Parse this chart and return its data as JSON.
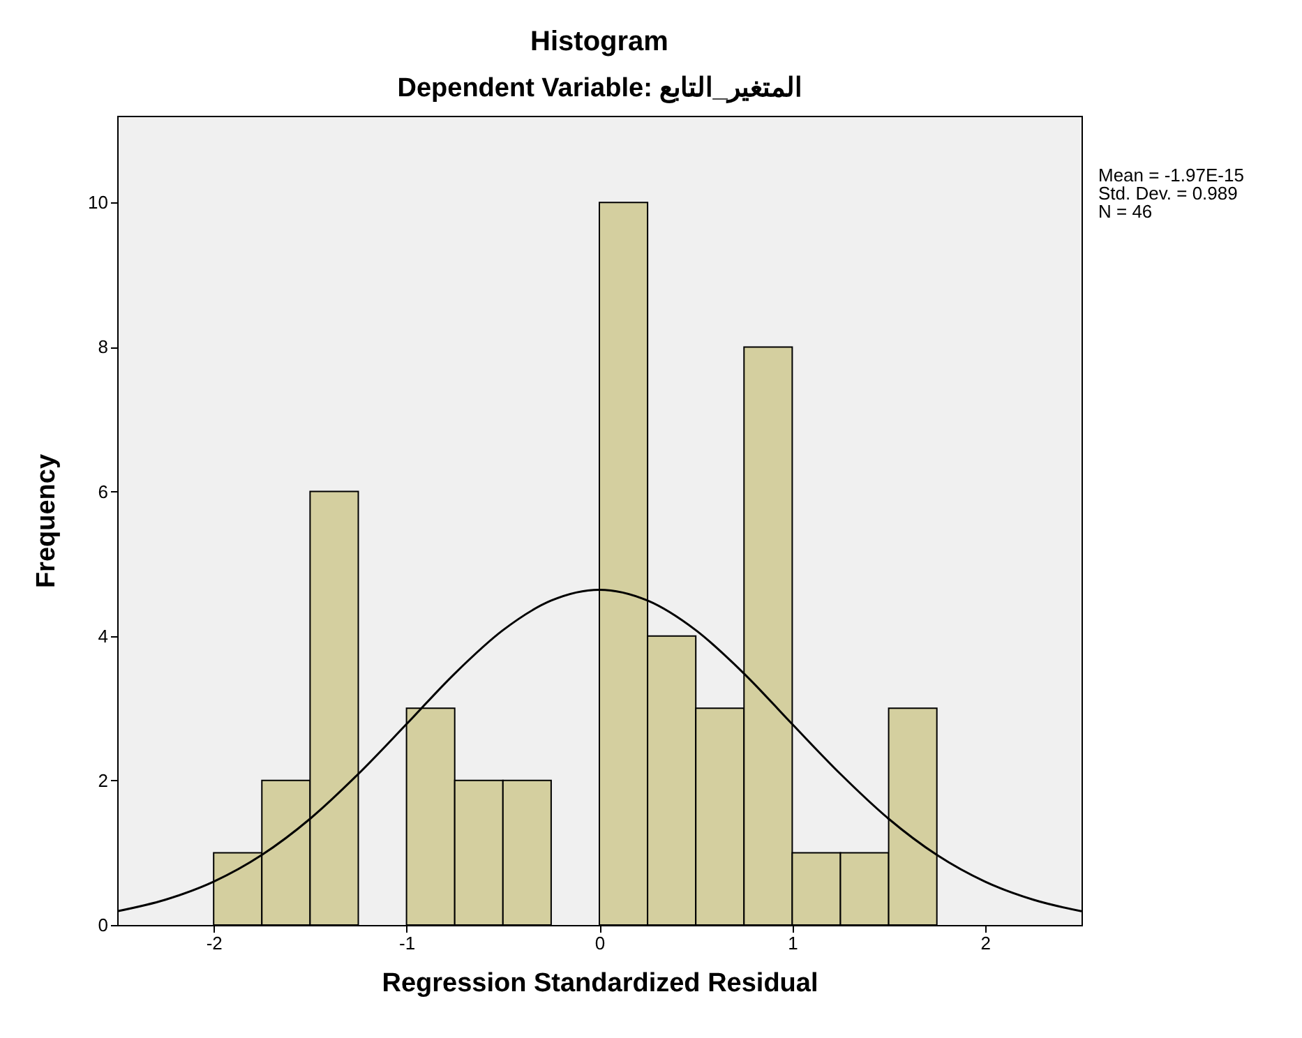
{
  "chart_data": {
    "type": "histogram",
    "title": "Histogram",
    "subtitle": "Dependent Variable: المتغير_التابع",
    "xlabel": "Regression Standardized Residual",
    "ylabel": "Frequency",
    "annotations": [
      "Mean = -1.97E-15",
      "Std. Dev. = 0.989",
      "N = 46"
    ],
    "bins": [
      -2,
      -1.75,
      -1.5,
      -1.25,
      -1,
      -0.75,
      -0.5,
      -0.25,
      0,
      0.25,
      0.5,
      0.75,
      1,
      1.25,
      1.5,
      1.75
    ],
    "series": [
      {
        "color": "#d4cf9f",
        "values": [
          1,
          2,
          6,
          0,
          3,
          2,
          2,
          0,
          10,
          4,
          3,
          8,
          1,
          1,
          3
        ]
      },
      {
        "type": "line",
        "color": "#000000",
        "x": [
          -2.5,
          -2.25,
          -2,
          -1.75,
          -1.5,
          -1.25,
          -1,
          -0.75,
          -0.5,
          -0.25,
          0,
          0.25,
          0.5,
          0.75,
          1,
          1.25,
          1.5,
          1.75,
          2,
          2.25,
          2.5
        ],
        "values": [
          0.19,
          0.35,
          0.6,
          0.97,
          1.47,
          2.09,
          2.78,
          3.48,
          4.08,
          4.49,
          4.64,
          4.49,
          4.08,
          3.48,
          2.78,
          2.09,
          1.47,
          0.97,
          0.6,
          0.35,
          0.19
        ]
      }
    ],
    "xlim": [
      -2.5,
      2.5
    ],
    "xticks": [
      -2,
      -1,
      0,
      1,
      2
    ],
    "ylim": [
      0,
      11.2
    ],
    "yticks": [
      0,
      2,
      4,
      6,
      8,
      10
    ],
    "grid": false
  }
}
